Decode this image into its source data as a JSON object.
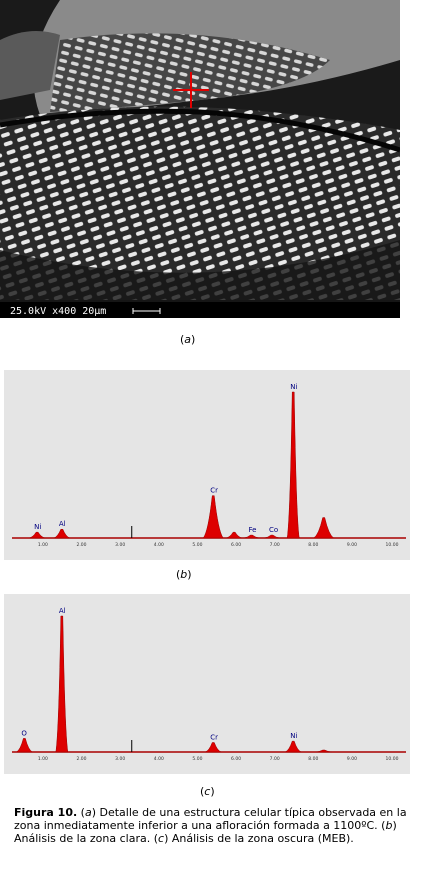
{
  "figure": {
    "sem_image": {
      "scale_bar_text": "25.0kV  x400   20µm",
      "label": "a"
    },
    "panel_b_label": "b",
    "panel_c_label": "c",
    "caption": {
      "bold": "Figura 10.",
      "parts": [
        {
          "t": "(",
          "i": false
        },
        {
          "t": "a",
          "i": true
        },
        {
          "t": ") Detalle de una estructura celular típica observada en la zona inmediatamente inferior a una afloración formada a 1100ºC. (",
          "i": false
        },
        {
          "t": "b",
          "i": true
        },
        {
          "t": ") Análisis de la zona clara. (",
          "i": false
        },
        {
          "t": "c",
          "i": true
        },
        {
          "t": ") Análisis de la zona oscura (MEB).",
          "i": false
        }
      ]
    }
  },
  "chart_data": [
    {
      "type": "area",
      "xlabel": "",
      "ylabel": "",
      "x_ticks": [
        "1.00",
        "2.00",
        "3.00",
        "4.00",
        "5.00",
        "6.00",
        "7.00",
        "8.00",
        "9.00",
        "10.00"
      ],
      "xlim": [
        0.2,
        10.4
      ],
      "peaks": [
        {
          "label": "Ni",
          "x": 0.85,
          "height": 0.04
        },
        {
          "label": "Al",
          "x": 1.49,
          "height": 0.06
        },
        {
          "label": "Cr",
          "x": 5.41,
          "height": 0.29
        },
        {
          "label": "",
          "x": 5.95,
          "height": 0.04
        },
        {
          "label": "Fe",
          "x": 6.4,
          "height": 0.02
        },
        {
          "label": "Co",
          "x": 6.93,
          "height": 0.02
        },
        {
          "label": "Ni",
          "x": 7.48,
          "height": 1.0
        },
        {
          "label": "",
          "x": 8.27,
          "height": 0.14
        }
      ],
      "colors": {
        "fill": "#dd0000",
        "background": "#e5e5e5"
      }
    },
    {
      "type": "area",
      "xlabel": "",
      "ylabel": "",
      "x_ticks": [
        "1.00",
        "2.00",
        "3.00",
        "4.00",
        "5.00",
        "6.00",
        "7.00",
        "8.00",
        "9.00",
        "10.00"
      ],
      "xlim": [
        0.2,
        10.4
      ],
      "peaks": [
        {
          "label": "O",
          "x": 0.52,
          "height": 0.1
        },
        {
          "label": "Al",
          "x": 1.49,
          "height": 1.0
        },
        {
          "label": "Cr",
          "x": 5.41,
          "height": 0.07
        },
        {
          "label": "Ni",
          "x": 7.48,
          "height": 0.08
        },
        {
          "label": "",
          "x": 8.27,
          "height": 0.01
        }
      ],
      "colors": {
        "fill": "#dd0000",
        "background": "#e5e5e5"
      }
    }
  ]
}
